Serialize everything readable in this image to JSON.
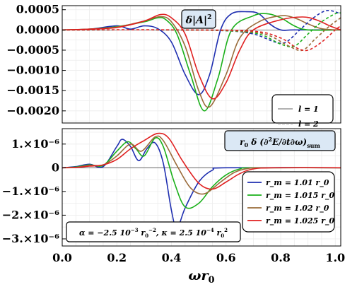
{
  "chart_data": {
    "type": "line",
    "x_axis": {
      "label": "ωr0",
      "ticks": [
        "0.0",
        "0.2",
        "0.4",
        "0.6",
        "0.8",
        "1.0"
      ],
      "range": [
        0,
        1.02
      ]
    },
    "line_styles": [
      {
        "label": "l = 1",
        "style": "solid",
        "color": "#999999"
      },
      {
        "label": "l = 2",
        "style": "dashed",
        "color": "#999999"
      }
    ],
    "radii": [
      {
        "label": "r_m = 1.01 r_0",
        "color": "#1f2fb0"
      },
      {
        "label": "r_m = 1.015 r_0",
        "color": "#1ab01a"
      },
      {
        "label": "r_m = 1.02 r_0",
        "color": "#9a6b3a"
      },
      {
        "label": "r_m = 1.025 r_0",
        "color": "#e02020"
      }
    ],
    "panels": [
      {
        "id": "top",
        "title": "δ|A|²",
        "yticks": [
          "0.0005",
          "0.0000",
          "−0.0005",
          "−0.0010",
          "−0.0015",
          "−0.0020"
        ],
        "ylim": [
          -0.0023,
          0.0006
        ],
        "ytick_values": [
          0.0005,
          0,
          -0.0005,
          -0.001,
          -0.0015,
          -0.002
        ],
        "legend": "line_styles",
        "series": [
          {
            "name": "r_m = 1.01 r_0, l = 1",
            "color": "#1f2fb0",
            "style": "solid",
            "points": [
              [
                0,
                0
              ],
              [
                0.1,
                2e-05
              ],
              [
                0.2,
                0.0001
              ],
              [
                0.25,
                2e-05
              ],
              [
                0.3,
                0.0001
              ],
              [
                0.35,
                3e-05
              ],
              [
                0.4,
                -0.0003
              ],
              [
                0.45,
                -0.0011
              ],
              [
                0.5,
                -0.0016
              ],
              [
                0.54,
                -0.0011
              ],
              [
                0.58,
                0.0
              ],
              [
                0.62,
                0.0004
              ],
              [
                0.68,
                0.00045
              ],
              [
                0.72,
                0.0004
              ],
              [
                0.76,
                0.00015
              ],
              [
                0.8,
                0
              ],
              [
                0.85,
                0
              ],
              [
                1.02,
                0
              ]
            ]
          },
          {
            "name": "r_m = 1.015 r_0, l = 1",
            "color": "#1ab01a",
            "style": "solid",
            "points": [
              [
                0,
                0
              ],
              [
                0.1,
                2e-05
              ],
              [
                0.2,
                8e-05
              ],
              [
                0.3,
                0.0002
              ],
              [
                0.35,
                0.0003
              ],
              [
                0.38,
                0.00025
              ],
              [
                0.42,
                -0.0001
              ],
              [
                0.47,
                -0.0011
              ],
              [
                0.52,
                -0.002
              ],
              [
                0.57,
                -0.0012
              ],
              [
                0.62,
                0
              ],
              [
                0.7,
                0.00035
              ],
              [
                0.75,
                0.0004
              ],
              [
                0.8,
                0.0003
              ],
              [
                0.85,
                0.0001
              ],
              [
                0.9,
                0
              ],
              [
                1.02,
                0
              ]
            ]
          },
          {
            "name": "r_m = 1.02 r_0, l = 1",
            "color": "#9a6b3a",
            "style": "solid",
            "points": [
              [
                0,
                0
              ],
              [
                0.1,
                2e-05
              ],
              [
                0.2,
                7e-05
              ],
              [
                0.3,
                0.00022
              ],
              [
                0.36,
                0.00033
              ],
              [
                0.4,
                0.0002
              ],
              [
                0.45,
                -0.0004
              ],
              [
                0.5,
                -0.0015
              ],
              [
                0.54,
                -0.0019
              ],
              [
                0.6,
                -0.0011
              ],
              [
                0.65,
                -0.0002
              ],
              [
                0.72,
                0.0002
              ],
              [
                0.8,
                0.00035
              ],
              [
                0.85,
                0.0003
              ],
              [
                0.9,
                0.00015
              ],
              [
                0.95,
                3e-05
              ],
              [
                1.02,
                0
              ]
            ]
          },
          {
            "name": "r_m = 1.025 r_0, l = 1",
            "color": "#e02020",
            "style": "solid",
            "points": [
              [
                0,
                0
              ],
              [
                0.1,
                2e-05
              ],
              [
                0.2,
                6e-05
              ],
              [
                0.3,
                0.00022
              ],
              [
                0.36,
                0.00038
              ],
              [
                0.4,
                0.0003
              ],
              [
                0.45,
                -0.0001
              ],
              [
                0.5,
                -0.0011
              ],
              [
                0.55,
                -0.0017
              ],
              [
                0.6,
                -0.0013
              ],
              [
                0.65,
                -0.0005
              ],
              [
                0.7,
                0
              ],
              [
                0.8,
                0.00025
              ],
              [
                0.88,
                0.00032
              ],
              [
                0.93,
                0.00025
              ],
              [
                0.98,
                0.0001
              ],
              [
                1.02,
                0
              ]
            ]
          },
          {
            "name": "r_m = 1.01 r_0, l = 2",
            "color": "#1f2fb0",
            "style": "dashed",
            "points": [
              [
                0,
                0
              ],
              [
                0.4,
                0
              ],
              [
                0.6,
                -2e-05
              ],
              [
                0.7,
                -0.0001
              ],
              [
                0.78,
                -0.0003
              ],
              [
                0.82,
                -0.0003
              ],
              [
                0.87,
                0
              ],
              [
                0.92,
                0.0003
              ],
              [
                0.97,
                0.00048
              ],
              [
                1.02,
                0.0004
              ]
            ]
          },
          {
            "name": "r_m = 1.015 r_0, l = 2",
            "color": "#1ab01a",
            "style": "dashed",
            "points": [
              [
                0,
                0
              ],
              [
                0.4,
                0
              ],
              [
                0.6,
                -2e-05
              ],
              [
                0.72,
                -0.0001
              ],
              [
                0.8,
                -0.00035
              ],
              [
                0.85,
                -0.0004
              ],
              [
                0.9,
                -0.0001
              ],
              [
                0.95,
                0.0002
              ],
              [
                1.0,
                0.0004
              ],
              [
                1.02,
                0.00042
              ]
            ]
          },
          {
            "name": "r_m = 1.02 r_0, l = 2",
            "color": "#9a6b3a",
            "style": "dashed",
            "points": [
              [
                0,
                0
              ],
              [
                0.4,
                0
              ],
              [
                0.65,
                -3e-05
              ],
              [
                0.75,
                -0.00012
              ],
              [
                0.83,
                -0.0004
              ],
              [
                0.88,
                -0.0005
              ],
              [
                0.93,
                -0.0002
              ],
              [
                0.98,
                0.0001
              ],
              [
                1.02,
                0.0003
              ]
            ]
          },
          {
            "name": "r_m = 1.025 r_0, l = 2",
            "color": "#e02020",
            "style": "dashed",
            "points": [
              [
                0,
                0
              ],
              [
                0.45,
                0
              ],
              [
                0.7,
                -3e-05
              ],
              [
                0.8,
                -0.0002
              ],
              [
                0.86,
                -0.00045
              ],
              [
                0.9,
                -0.0005
              ],
              [
                0.95,
                -0.0003
              ],
              [
                1.0,
                0
              ],
              [
                1.02,
                0.0001
              ]
            ]
          }
        ]
      },
      {
        "id": "bottom",
        "title": "r0 δ(∂²E/∂t∂ω)sum",
        "yticks": [
          "1.×10⁻⁶",
          "0",
          "−1.×10⁻⁶",
          "−2.×10⁻⁶",
          "−3.×10⁻⁶"
        ],
        "ytick_values": [
          1e-06,
          0,
          -1e-06,
          -2e-06,
          -3e-06
        ],
        "ylim": [
          -3.3e-06,
          1.65e-06
        ],
        "legend": "radii",
        "annotation": "α = −2.5 10⁻³ r₀⁻², κ = 2.5 10⁻⁴ r₀²",
        "series": [
          {
            "name": "r_m = 1.01 r_0",
            "color": "#1f2fb0",
            "points": [
              [
                0,
                0
              ],
              [
                0.05,
                5e-08
              ],
              [
                0.1,
                1.5e-07
              ],
              [
                0.15,
                5e-08
              ],
              [
                0.2,
                9e-07
              ],
              [
                0.22,
                1.2e-06
              ],
              [
                0.25,
                9e-07
              ],
              [
                0.28,
                3e-07
              ],
              [
                0.31,
                8e-07
              ],
              [
                0.34,
                1.05e-06
              ],
              [
                0.37,
                2e-07
              ],
              [
                0.4,
                -1.8e-06
              ],
              [
                0.42,
                -2.55e-06
              ],
              [
                0.45,
                -1.7e-06
              ],
              [
                0.5,
                -6e-07
              ],
              [
                0.55,
                -1e-07
              ],
              [
                0.6,
                0
              ],
              [
                1.02,
                0
              ]
            ]
          },
          {
            "name": "r_m = 1.015 r_0",
            "color": "#1ab01a",
            "points": [
              [
                0,
                0
              ],
              [
                0.05,
                3e-08
              ],
              [
                0.1,
                1.2e-07
              ],
              [
                0.15,
                1e-07
              ],
              [
                0.2,
                7e-07
              ],
              [
                0.24,
                1.1e-06
              ],
              [
                0.27,
                8e-07
              ],
              [
                0.3,
                5e-07
              ],
              [
                0.34,
                1.25e-06
              ],
              [
                0.37,
                9e-07
              ],
              [
                0.41,
                -6e-07
              ],
              [
                0.45,
                -1.65e-06
              ],
              [
                0.5,
                -1.5e-06
              ],
              [
                0.55,
                -8e-07
              ],
              [
                0.6,
                -3e-07
              ],
              [
                0.65,
                -5e-08
              ],
              [
                0.7,
                0
              ],
              [
                1.02,
                0
              ]
            ]
          },
          {
            "name": "r_m = 1.02 r_0",
            "color": "#9a6b3a",
            "points": [
              [
                0,
                0
              ],
              [
                0.05,
                2e-08
              ],
              [
                0.1,
                1e-07
              ],
              [
                0.15,
                1.2e-07
              ],
              [
                0.2,
                5e-07
              ],
              [
                0.25,
                1e-06
              ],
              [
                0.29,
                7e-07
              ],
              [
                0.34,
                1.3e-06
              ],
              [
                0.37,
                1.15e-06
              ],
              [
                0.42,
                1e-07
              ],
              [
                0.47,
                -8.5e-07
              ],
              [
                0.52,
                -1.1e-06
              ],
              [
                0.58,
                -6e-07
              ],
              [
                0.63,
                -2e-07
              ],
              [
                0.68,
                -3e-08
              ],
              [
                0.75,
                0
              ],
              [
                1.02,
                0
              ]
            ]
          },
          {
            "name": "r_m = 1.025 r_0",
            "color": "#e02020",
            "points": [
              [
                0,
                0
              ],
              [
                0.05,
                1e-08
              ],
              [
                0.1,
                7e-08
              ],
              [
                0.15,
                1.2e-07
              ],
              [
                0.2,
                3.5e-07
              ],
              [
                0.25,
                8e-07
              ],
              [
                0.3,
                1.15e-06
              ],
              [
                0.35,
                1.45e-06
              ],
              [
                0.39,
                1.25e-06
              ],
              [
                0.44,
                3e-07
              ],
              [
                0.5,
                -6.5e-07
              ],
              [
                0.55,
                -9e-07
              ],
              [
                0.6,
                -6e-07
              ],
              [
                0.65,
                -2.5e-07
              ],
              [
                0.7,
                -5e-08
              ],
              [
                0.78,
                0
              ],
              [
                1.02,
                0
              ]
            ]
          }
        ]
      }
    ]
  }
}
